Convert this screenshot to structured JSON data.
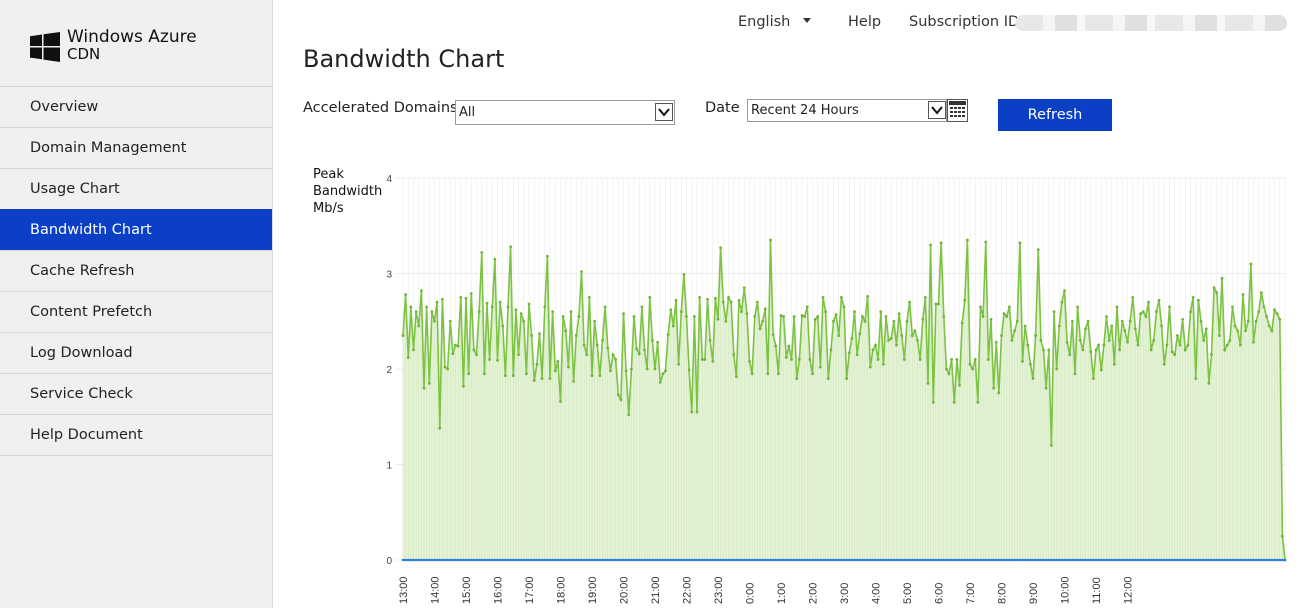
{
  "app": {
    "logo_line1": "Windows Azure",
    "logo_line2": "CDN"
  },
  "topbar": {
    "language": "English",
    "help": "Help",
    "subscription_label": "Subscription ID:"
  },
  "sidebar": {
    "items": [
      {
        "label": "Overview"
      },
      {
        "label": "Domain Management"
      },
      {
        "label": "Usage Chart"
      },
      {
        "label": "Bandwidth Chart",
        "active": true
      },
      {
        "label": "Cache Refresh"
      },
      {
        "label": "Content Prefetch"
      },
      {
        "label": "Log Download"
      },
      {
        "label": "Service Check"
      },
      {
        "label": "Help Document"
      }
    ]
  },
  "page": {
    "title": "Bandwidth Chart"
  },
  "filters": {
    "domains_label": "Accelerated Domains",
    "domains_value": "All",
    "date_label": "Date",
    "date_value": "Recent 24 Hours",
    "refresh_label": "Refresh"
  },
  "colors": {
    "accent": "#0a3fc6",
    "series_main": "#7cc243",
    "series_fill": "#e4f2d6",
    "series_base": "#2f80e0"
  },
  "chart_data": {
    "type": "area",
    "ylabel_lines": [
      "Peak",
      "Bandwidth",
      "Mb/s"
    ],
    "ylim": [
      0,
      4
    ],
    "yticks": [
      "0",
      "1",
      "2",
      "3",
      "4"
    ],
    "xtick_labels": [
      "13:00",
      "14:00",
      "15:00",
      "16:00",
      "17:00",
      "18:00",
      "19:00",
      "20:00",
      "21:00",
      "22:00",
      "23:00",
      "0:00",
      "1:00",
      "2:00",
      "3:00",
      "4:00",
      "5:00",
      "6:00",
      "7:00",
      "8:00",
      "9:00",
      "10:00",
      "11:00",
      "12:00"
    ],
    "grid": true,
    "x_points_per_hour": 12,
    "series": [
      {
        "values": [
          2.35,
          2.78,
          2.12,
          2.65,
          2.2,
          2.6,
          2.45,
          2.82,
          1.8,
          2.65,
          1.85,
          2.6,
          2.5,
          2.7,
          1.38,
          2.73,
          2.02,
          2.0,
          2.5,
          2.16,
          2.25,
          2.24,
          2.75,
          1.82,
          2.74,
          1.95,
          2.79,
          2.2,
          2.15,
          2.6,
          3.22,
          1.95,
          2.69,
          2.1,
          2.65,
          3.15,
          2.09,
          2.7,
          2.45,
          1.93,
          2.65,
          3.28,
          1.93,
          2.62,
          2.15,
          2.58,
          2.5,
          1.95,
          2.68,
          2.35,
          1.88,
          2.05,
          2.37,
          1.9,
          2.65,
          3.18,
          1.9,
          2.6,
          1.98,
          2.08,
          1.66,
          2.55,
          2.4,
          2.02,
          2.6,
          1.87,
          2.35,
          2.55,
          3.02,
          2.25,
          2.15,
          2.75,
          1.93,
          2.5,
          2.25,
          1.93,
          2.3,
          2.65,
          2.22,
          1.98,
          2.15,
          2.1,
          1.73,
          1.68,
          2.58,
          1.98,
          1.52,
          2.0,
          2.55,
          2.21,
          2.16,
          2.65,
          2.2,
          2.0,
          2.75,
          2.3,
          2.0,
          2.28,
          1.86,
          1.95,
          1.98,
          2.36,
          2.62,
          2.45,
          2.72,
          2.05,
          2.6,
          2.99,
          2.55,
          1.99,
          1.55,
          2.55,
          1.55,
          2.75,
          2.1,
          2.1,
          2.73,
          2.3,
          2.08,
          2.74,
          2.52,
          3.27,
          2.7,
          2.5,
          2.75,
          2.7,
          2.15,
          1.92,
          2.72,
          2.6,
          2.85,
          2.58,
          2.08,
          1.95,
          2.55,
          2.7,
          2.42,
          2.5,
          2.63,
          1.95,
          3.35,
          2.36,
          2.24,
          1.95,
          2.56,
          2.55,
          2.12,
          2.24,
          2.1,
          2.55,
          1.9,
          2.1,
          2.56,
          2.55,
          2.65,
          2.1,
          1.95,
          2.52,
          2.55,
          2.02,
          2.75,
          2.6,
          1.9,
          2.2,
          2.5,
          2.57,
          2.35,
          2.75,
          2.65,
          1.9,
          2.17,
          2.32,
          2.6,
          2.15,
          2.37,
          2.55,
          2.5,
          2.76,
          2.02,
          2.2,
          2.25,
          2.1,
          2.6,
          2.05,
          2.55,
          2.3,
          2.32,
          2.5,
          2.25,
          2.58,
          2.35,
          2.1,
          2.5,
          2.7,
          2.35,
          2.4,
          2.3,
          2.1,
          2.52,
          2.75,
          1.85,
          3.3,
          1.65,
          2.68,
          2.68,
          3.32,
          2.55,
          2.0,
          1.95,
          2.1,
          1.65,
          2.1,
          1.83,
          2.48,
          2.72,
          3.35,
          2.05,
          2.0,
          2.1,
          1.65,
          2.65,
          2.55,
          3.33,
          2.1,
          2.52,
          1.8,
          2.28,
          1.75,
          2.35,
          2.58,
          2.55,
          2.65,
          2.3,
          2.4,
          2.5,
          3.32,
          2.08,
          2.45,
          2.25,
          2.05,
          1.9,
          2.35,
          3.25,
          2.3,
          2.2,
          1.8,
          2.2,
          1.2,
          2.6,
          2.0,
          2.45,
          2.7,
          2.82,
          2.28,
          2.15,
          2.5,
          1.95,
          2.65,
          2.3,
          2.2,
          2.42,
          2.5,
          2.18,
          1.9,
          2.2,
          2.25,
          1.99,
          2.25,
          2.55,
          2.3,
          2.45,
          2.05,
          2.65,
          2.2,
          2.5,
          2.4,
          2.28,
          2.5,
          2.75,
          2.42,
          2.25,
          2.58,
          2.6,
          2.55,
          2.7,
          2.2,
          2.3,
          2.6,
          2.72,
          2.45,
          2.05,
          2.25,
          2.65,
          2.18,
          2.15,
          2.35,
          2.25,
          2.52,
          2.2,
          2.25,
          2.6,
          2.75,
          1.9,
          2.72,
          2.5,
          2.3,
          2.42,
          1.85,
          2.15,
          2.85,
          2.8,
          2.35,
          2.95,
          2.2,
          2.25,
          2.3,
          2.65,
          2.45,
          2.4,
          2.25,
          2.78,
          2.4,
          2.5,
          3.1,
          2.28,
          2.5,
          2.6,
          2.8,
          2.65,
          2.55,
          2.45,
          2.4,
          2.62,
          2.58,
          2.52,
          0.25,
          0.0
        ]
      },
      {
        "values": "flat-near-zero",
        "approx": 0.0
      }
    ]
  }
}
